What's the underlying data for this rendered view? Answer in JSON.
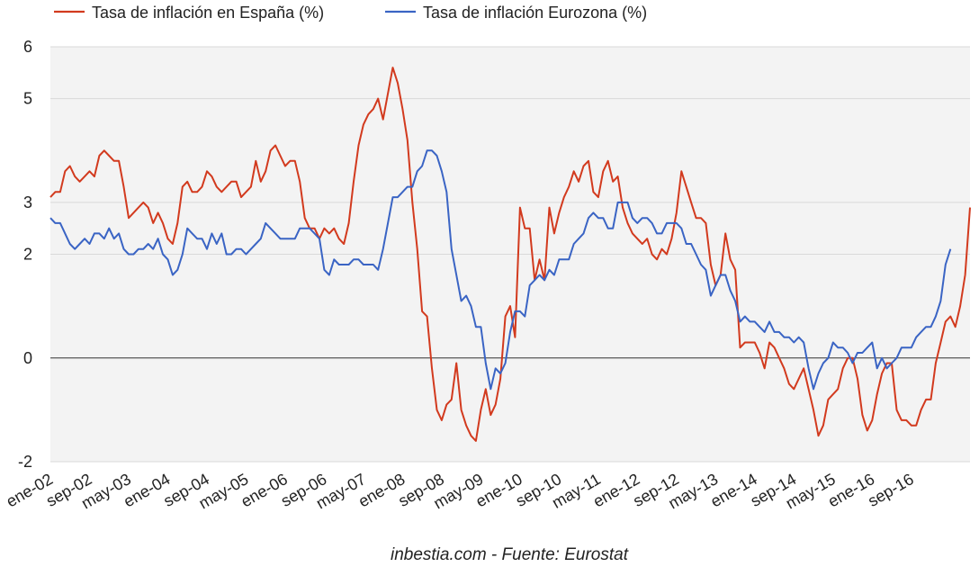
{
  "chart_data": {
    "type": "line",
    "title": "",
    "xlabel": "",
    "ylabel": "",
    "ylim": [
      -2,
      6
    ],
    "yticks": [
      -2,
      0,
      2,
      3,
      5,
      6
    ],
    "x_tick_labels": [
      "ene-02",
      "sep-02",
      "may-03",
      "ene-04",
      "sep-04",
      "may-05",
      "ene-06",
      "sep-06",
      "may-07",
      "ene-08",
      "sep-08",
      "may-09",
      "ene-10",
      "sep-10",
      "may-11",
      "ene-12",
      "sep-12",
      "may-13",
      "ene-14",
      "sep-14",
      "may-15",
      "ene-16",
      "sep-16"
    ],
    "legend_position": "top-left",
    "grid": true,
    "annotation": "inbestia.com - Fuente: Eurostat",
    "series": [
      {
        "name": "Tasa de inflación en España (%)",
        "color": "#d23a1e",
        "values": [
          3.1,
          3.2,
          3.2,
          3.6,
          3.7,
          3.5,
          3.4,
          3.5,
          3.6,
          3.5,
          3.9,
          4.0,
          3.9,
          3.8,
          3.8,
          3.3,
          2.7,
          2.8,
          2.9,
          3.0,
          2.9,
          2.6,
          2.8,
          2.6,
          2.3,
          2.2,
          2.6,
          3.3,
          3.4,
          3.2,
          3.2,
          3.3,
          3.6,
          3.5,
          3.3,
          3.2,
          3.3,
          3.4,
          3.4,
          3.1,
          3.2,
          3.3,
          3.8,
          3.4,
          3.6,
          4.0,
          4.1,
          3.9,
          3.7,
          3.8,
          3.8,
          3.4,
          2.7,
          2.5,
          2.5,
          2.3,
          2.5,
          2.4,
          2.5,
          2.3,
          2.2,
          2.6,
          3.4,
          4.1,
          4.5,
          4.7,
          4.8,
          5.0,
          4.6,
          5.1,
          5.6,
          5.3,
          4.8,
          4.2,
          3.0,
          2.1,
          0.9,
          0.8,
          -0.2,
          -1.0,
          -1.2,
          -0.9,
          -0.8,
          -0.1,
          -1.0,
          -1.3,
          -1.5,
          -1.6,
          -1.0,
          -0.6,
          -1.1,
          -0.9,
          -0.4,
          0.8,
          1.0,
          0.4,
          2.9,
          2.5,
          2.5,
          1.5,
          1.9,
          1.5,
          2.9,
          2.4,
          2.8,
          3.1,
          3.3,
          3.6,
          3.4,
          3.7,
          3.8,
          3.2,
          3.1,
          3.6,
          3.8,
          3.4,
          3.5,
          2.9,
          2.6,
          2.4,
          2.3,
          2.2,
          2.3,
          2.0,
          1.9,
          2.1,
          2.0,
          2.3,
          2.8,
          3.6,
          3.3,
          3.0,
          2.7,
          2.7,
          2.6,
          1.8,
          1.4,
          1.6,
          2.4,
          1.9,
          1.7,
          0.2,
          0.3,
          0.3,
          0.3,
          0.1,
          -0.2,
          0.3,
          0.2,
          0.0,
          -0.2,
          -0.5,
          -0.6,
          -0.4,
          -0.2,
          -0.6,
          -1.0,
          -1.5,
          -1.3,
          -0.8,
          -0.7,
          -0.6,
          -0.2,
          0.0,
          0.0,
          -0.4,
          -1.1,
          -1.4,
          -1.2,
          -0.7,
          -0.3,
          -0.1,
          -0.1,
          -1.0,
          -1.2,
          -1.2,
          -1.3,
          -1.3,
          -1.0,
          -0.8,
          -0.8,
          -0.1,
          0.3,
          0.7,
          0.8,
          0.6,
          1.0,
          1.6,
          2.9
        ]
      },
      {
        "name": "Tasa de inflación Eurozona (%)",
        "color": "#3a64c4",
        "values": [
          2.7,
          2.6,
          2.6,
          2.4,
          2.2,
          2.1,
          2.2,
          2.3,
          2.2,
          2.4,
          2.4,
          2.3,
          2.5,
          2.3,
          2.4,
          2.1,
          2.0,
          2.0,
          2.1,
          2.1,
          2.2,
          2.1,
          2.3,
          2.0,
          1.9,
          1.6,
          1.7,
          2.0,
          2.5,
          2.4,
          2.3,
          2.3,
          2.1,
          2.4,
          2.2,
          2.4,
          2.0,
          2.0,
          2.1,
          2.1,
          2.0,
          2.1,
          2.2,
          2.3,
          2.6,
          2.5,
          2.4,
          2.3,
          2.3,
          2.3,
          2.3,
          2.5,
          2.5,
          2.5,
          2.4,
          2.3,
          1.7,
          1.6,
          1.9,
          1.8,
          1.8,
          1.8,
          1.9,
          1.9,
          1.8,
          1.8,
          1.8,
          1.7,
          2.1,
          2.6,
          3.1,
          3.1,
          3.2,
          3.3,
          3.3,
          3.6,
          3.7,
          4.0,
          4.0,
          3.9,
          3.6,
          3.2,
          2.1,
          1.6,
          1.1,
          1.2,
          1.0,
          0.6,
          0.6,
          -0.1,
          -0.6,
          -0.2,
          -0.3,
          -0.1,
          0.5,
          0.9,
          0.9,
          0.8,
          1.4,
          1.5,
          1.6,
          1.5,
          1.7,
          1.6,
          1.9,
          1.9,
          1.9,
          2.2,
          2.3,
          2.4,
          2.7,
          2.8,
          2.7,
          2.7,
          2.5,
          2.5,
          3.0,
          3.0,
          3.0,
          2.7,
          2.6,
          2.7,
          2.7,
          2.6,
          2.4,
          2.4,
          2.6,
          2.6,
          2.6,
          2.5,
          2.2,
          2.2,
          2.0,
          1.8,
          1.7,
          1.2,
          1.4,
          1.6,
          1.6,
          1.3,
          1.1,
          0.7,
          0.8,
          0.7,
          0.7,
          0.6,
          0.5,
          0.7,
          0.5,
          0.5,
          0.4,
          0.4,
          0.3,
          0.4,
          0.3,
          -0.2,
          -0.6,
          -0.3,
          -0.1,
          0.0,
          0.3,
          0.2,
          0.2,
          0.1,
          -0.1,
          0.1,
          0.1,
          0.2,
          0.3,
          -0.2,
          0.0,
          -0.2,
          -0.1,
          0.0,
          0.2,
          0.2,
          0.2,
          0.4,
          0.5,
          0.6,
          0.6,
          0.8,
          1.1,
          1.8,
          2.1
        ]
      }
    ]
  }
}
